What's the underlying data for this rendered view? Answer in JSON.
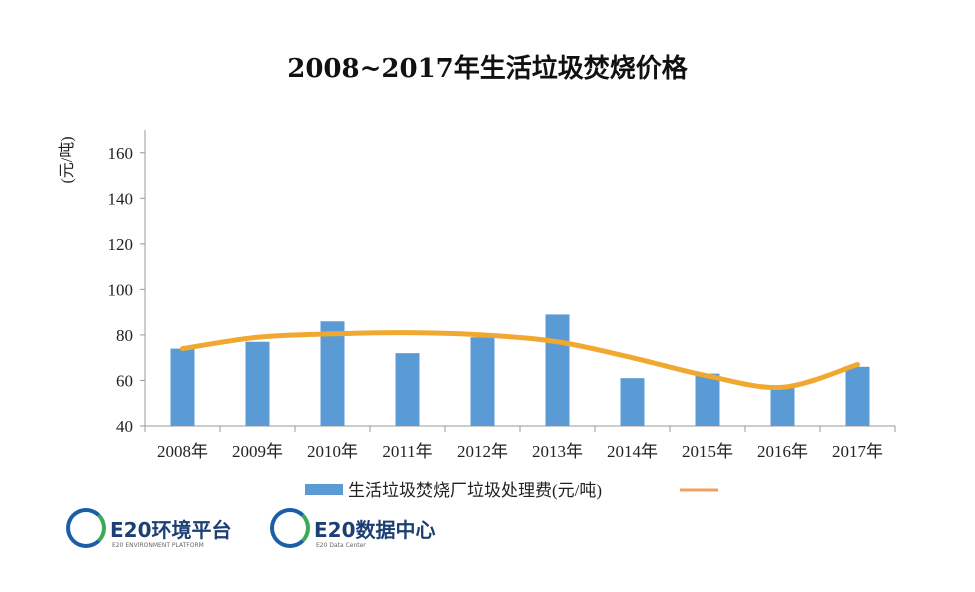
{
  "chart_data": {
    "type": "bar",
    "title": "2008~2017年生活垃圾焚烧价格",
    "ylabel": "(元/吨)",
    "xlabel": "",
    "categories": [
      "2008年",
      "2009年",
      "2010年",
      "2011年",
      "2012年",
      "2013年",
      "2014年",
      "2015年",
      "2016年",
      "2017年"
    ],
    "series": [
      {
        "name": "生活垃圾焚烧厂垃圾处理费(元/吨)",
        "type": "bar",
        "color": "#5b9bd5",
        "values": [
          74,
          77,
          86,
          72,
          79,
          89,
          61,
          63,
          58,
          66
        ]
      },
      {
        "name": "",
        "type": "line",
        "smooth": true,
        "color": "#f0a830",
        "values": [
          74,
          79,
          80.5,
          81,
          80,
          77,
          70,
          62,
          57,
          67
        ]
      }
    ],
    "ylim": [
      40,
      170
    ],
    "yticks": [
      40,
      60,
      80,
      100,
      120,
      140,
      160
    ],
    "grid": false,
    "legend_position": "bottom"
  },
  "logos": [
    {
      "name": "E20环境平台",
      "sub": "E20 ENVIRONMENT PLATFORM"
    },
    {
      "name": "E20数据中心",
      "sub": "E20 Data Center"
    }
  ]
}
